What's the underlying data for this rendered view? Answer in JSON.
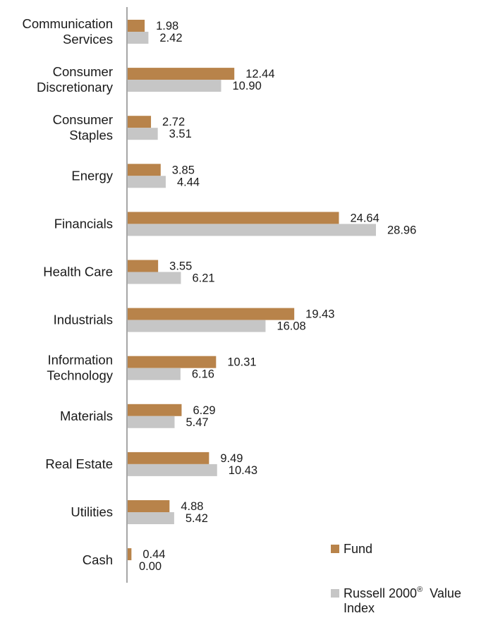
{
  "chart_data": {
    "type": "bar",
    "orientation": "horizontal",
    "categories": [
      [
        "Communication",
        "Services"
      ],
      [
        "Consumer",
        "Discretionary"
      ],
      [
        "Consumer",
        "Staples"
      ],
      [
        "Energy"
      ],
      [
        "Financials"
      ],
      [
        "Health Care"
      ],
      [
        "Industrials"
      ],
      [
        "Information",
        "Technology"
      ],
      [
        "Materials"
      ],
      [
        "Real Estate"
      ],
      [
        "Utilities"
      ],
      [
        "Cash"
      ]
    ],
    "series": [
      {
        "name": "Fund",
        "color": "#b8834a",
        "values": [
          1.98,
          12.44,
          2.72,
          3.85,
          24.64,
          3.55,
          19.43,
          10.31,
          6.29,
          9.49,
          4.88,
          0.44
        ],
        "labels": [
          "1.98",
          "12.44",
          "2.72",
          "3.85",
          "24.64",
          "3.55",
          "19.43",
          "10.31",
          "6.29",
          "9.49",
          "4.88",
          "0.44"
        ]
      },
      {
        "name": "Russell 2000® Value Index",
        "color": "#c6c6c6",
        "values": [
          2.42,
          10.9,
          3.51,
          4.44,
          28.96,
          6.21,
          16.08,
          6.16,
          5.47,
          10.43,
          5.42,
          0.0
        ],
        "labels": [
          "2.42",
          "10.90",
          "3.51",
          "4.44",
          "28.96",
          "6.21",
          "16.08",
          "6.16",
          "5.47",
          "10.43",
          "5.42",
          "0.00"
        ]
      }
    ],
    "xlim": [
      0,
      30
    ],
    "grid": false,
    "legend": {
      "position": "bottom-right",
      "fund_label": "Fund",
      "index_label_main": "Russell 2000",
      "index_label_sup": "®",
      "index_label_tail": "  Value",
      "index_label_line2": "Index"
    }
  }
}
